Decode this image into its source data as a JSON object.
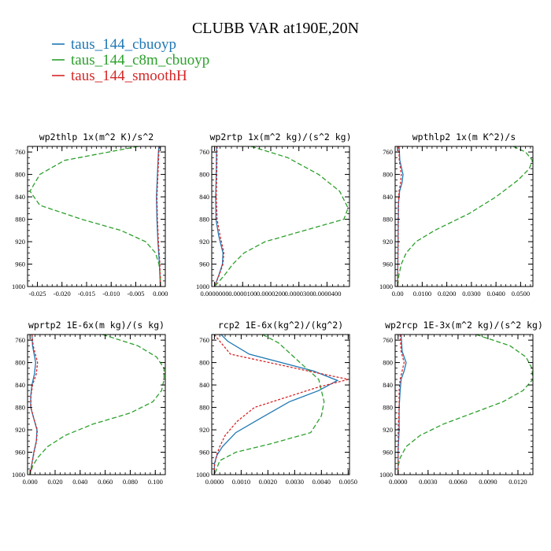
{
  "figure": {
    "title": "CLUBB VAR at190E,20N"
  },
  "legend": [
    {
      "label": "taus_144_cbuoyp",
      "color": "#1f77b4",
      "dash": "solid"
    },
    {
      "label": "taus_144_c8m_cbuoyp",
      "color": "#2ca02c",
      "dash": "dashed"
    },
    {
      "label": "taus_144_smoothH",
      "color": "#d62728",
      "dash": "dotted"
    }
  ],
  "chart_data": [
    {
      "type": "line",
      "title": "wp2thlp  1x(m^2 K)/s^2",
      "xlim": [
        -0.027,
        0.001
      ],
      "ylim": [
        750,
        1000
      ],
      "xticks": [
        -0.025,
        -0.02,
        -0.015,
        -0.01,
        -0.005,
        0.0
      ],
      "xtick_labels": [
        "-0.025",
        "-0.020",
        "-0.015",
        "-0.010",
        "-0.005",
        "0.000"
      ],
      "yticks": [
        760,
        800,
        840,
        880,
        920,
        960,
        1000
      ],
      "ytick_labels": [
        "760",
        "800",
        "840",
        "880",
        "920",
        "960",
        "1000"
      ],
      "series": [
        {
          "y": [
            750,
            760,
            800,
            840,
            880,
            920,
            960,
            1000
          ],
          "x": [
            -0.0003,
            -0.0004,
            -0.0006,
            -0.0008,
            -0.0007,
            -0.0005,
            -0.0002,
            0.0
          ]
        },
        {
          "y": [
            750,
            775,
            800,
            830,
            855,
            880,
            900,
            920,
            940,
            960,
            980,
            1000
          ],
          "x": [
            -0.0045,
            -0.0195,
            -0.0245,
            -0.0265,
            -0.0245,
            -0.016,
            -0.008,
            -0.003,
            -0.001,
            -0.0003,
            0.0,
            0.0
          ]
        },
        {
          "y": [
            750,
            760,
            800,
            840,
            880,
            920,
            960,
            1000
          ],
          "x": [
            -0.0002,
            -0.0003,
            -0.0005,
            -0.0007,
            -0.0006,
            -0.0004,
            -0.0001,
            0.0
          ]
        }
      ]
    },
    {
      "type": "line",
      "title": "wp2rtp  1x(m^2 kg)/(s^2 kg)",
      "xlim": [
        -1e-06,
        4.8e-05
      ],
      "ylim": [
        750,
        1000
      ],
      "xticks": [
        0.0,
        1e-05,
        2e-05,
        3e-05,
        4e-05
      ],
      "xtick_labels": [
        "0.0000000",
        "0.0000100",
        "0.0000200",
        "0.0000300",
        "0.0000400"
      ],
      "yticks": [
        760,
        800,
        840,
        880,
        920,
        960,
        1000
      ],
      "ytick_labels": [
        "760",
        "800",
        "840",
        "880",
        "920",
        "960",
        "1000"
      ],
      "series": [
        {
          "y": [
            750,
            800,
            840,
            880,
            910,
            940,
            960,
            980,
            1000
          ],
          "x": [
            7e-07,
            6e-07,
            4e-07,
            5e-07,
            1.5e-06,
            3e-06,
            2.8e-06,
            1.5e-06,
            0.0
          ]
        },
        {
          "y": [
            750,
            770,
            800,
            830,
            860,
            880,
            900,
            920,
            940,
            960,
            980,
            1000
          ],
          "x": [
            1.3e-05,
            2.6e-05,
            3.7e-05,
            4.45e-05,
            4.75e-05,
            4.6e-05,
            3.2e-05,
            1.8e-05,
            1.05e-05,
            6.5e-06,
            3.5e-06,
            0.0
          ]
        },
        {
          "y": [
            750,
            800,
            840,
            880,
            910,
            940,
            960,
            980,
            1000
          ],
          "x": [
            9e-07,
            8e-07,
            6e-07,
            9e-07,
            2e-06,
            3.3e-06,
            3e-06,
            1.6e-06,
            0.0
          ]
        }
      ]
    },
    {
      "type": "line",
      "title": "wpthlp2  1x(m K^2)/s",
      "xlim": [
        -0.001,
        0.055
      ],
      "ylim": [
        750,
        1000
      ],
      "xticks": [
        0.0,
        0.01,
        0.02,
        0.03,
        0.04,
        0.05
      ],
      "xtick_labels": [
        "0.00",
        "0.0100",
        "0.0200",
        "0.0300",
        "0.0400",
        "0.0500"
      ],
      "yticks": [
        760,
        800,
        840,
        880,
        920,
        960,
        1000
      ],
      "ytick_labels": [
        "760",
        "800",
        "840",
        "880",
        "920",
        "960",
        "1000"
      ],
      "series": [
        {
          "y": [
            750,
            775,
            800,
            815,
            830,
            850,
            880,
            920,
            960,
            1000
          ],
          "x": [
            0.0006,
            0.0009,
            0.0022,
            0.0018,
            0.0008,
            0.0004,
            0.0003,
            0.0002,
            0.0001,
            0.0
          ]
        },
        {
          "y": [
            750,
            760,
            775,
            790,
            810,
            840,
            870,
            900,
            920,
            940,
            960,
            980,
            1000
          ],
          "x": [
            0.047,
            0.052,
            0.0548,
            0.0535,
            0.049,
            0.04,
            0.029,
            0.015,
            0.0075,
            0.0035,
            0.0015,
            0.0005,
            0.0
          ]
        },
        {
          "y": [
            750,
            775,
            800,
            815,
            830,
            850,
            880,
            920,
            960,
            1000
          ],
          "x": [
            0.0005,
            0.0007,
            0.0015,
            0.0012,
            0.0006,
            0.0003,
            0.0002,
            0.0002,
            0.0001,
            0.0
          ]
        }
      ]
    },
    {
      "type": "line",
      "title": "wprtp2  1E-6x(m kg)/(s kg)",
      "xlim": [
        -0.002,
        0.108
      ],
      "ylim": [
        750,
        1000
      ],
      "xticks": [
        0.0,
        0.02,
        0.04,
        0.06,
        0.08,
        0.1
      ],
      "xtick_labels": [
        "0.000",
        "0.020",
        "0.040",
        "0.060",
        "0.080",
        "0.100"
      ],
      "yticks": [
        760,
        800,
        840,
        880,
        920,
        960,
        1000
      ],
      "ytick_labels": [
        "760",
        "800",
        "840",
        "880",
        "920",
        "960",
        "1000"
      ],
      "series": [
        {
          "y": [
            750,
            770,
            800,
            820,
            840,
            860,
            880,
            900,
            920,
            940,
            960,
            980,
            1000
          ],
          "x": [
            0.0015,
            0.002,
            0.0045,
            0.0035,
            0.0015,
            0.0005,
            0.0005,
            0.003,
            0.0055,
            0.005,
            0.003,
            0.0015,
            0.0
          ]
        },
        {
          "y": [
            750,
            770,
            790,
            810,
            830,
            850,
            870,
            890,
            910,
            930,
            950,
            970,
            985,
            1000
          ],
          "x": [
            0.058,
            0.086,
            0.101,
            0.107,
            0.107,
            0.105,
            0.098,
            0.08,
            0.05,
            0.028,
            0.014,
            0.006,
            0.002,
            0.0
          ]
        },
        {
          "y": [
            750,
            770,
            800,
            820,
            840,
            860,
            880,
            900,
            920,
            940,
            960,
            980,
            1000
          ],
          "x": [
            0.0015,
            0.0025,
            0.006,
            0.005,
            0.002,
            0.0007,
            0.0007,
            0.003,
            0.0058,
            0.0052,
            0.0032,
            0.0016,
            0.0
          ]
        }
      ]
    },
    {
      "type": "line",
      "title": "rcp2  1E-6x(kg^2)/(kg^2)",
      "xlim": [
        -0.0001,
        0.00505
      ],
      "ylim": [
        750,
        1000
      ],
      "xticks": [
        0.0,
        0.001,
        0.002,
        0.003,
        0.004,
        0.005
      ],
      "xtick_labels": [
        "0.0000",
        "0.0010",
        "0.0020",
        "0.0030",
        "0.0040",
        "0.0050"
      ],
      "yticks": [
        760,
        800,
        840,
        880,
        920,
        960,
        1000
      ],
      "ytick_labels": [
        "760",
        "800",
        "840",
        "880",
        "920",
        "960",
        "1000"
      ],
      "series": [
        {
          "y": [
            750,
            762,
            785,
            815,
            832,
            850,
            870,
            900,
            925,
            950,
            965,
            980,
            1000
          ],
          "x": [
            0.00025,
            0.0005,
            0.0013,
            0.0037,
            0.0046,
            0.0039,
            0.0028,
            0.0017,
            0.0008,
            0.0003,
            0.0001,
            0.0,
            0.0
          ]
        },
        {
          "y": [
            750,
            765,
            800,
            830,
            870,
            895,
            925,
            945,
            960,
            975,
            1000
          ],
          "x": [
            0.0018,
            0.0024,
            0.0032,
            0.0039,
            0.0041,
            0.004,
            0.0036,
            0.0021,
            0.0008,
            0.0002,
            0.0
          ]
        },
        {
          "y": [
            750,
            762,
            785,
            815,
            830,
            845,
            880,
            905,
            930,
            950,
            965,
            985,
            1000
          ],
          "x": [
            0.0,
            0.0002,
            0.0006,
            0.0035,
            0.005,
            0.0038,
            0.0015,
            0.00085,
            0.0004,
            0.0002,
            8e-05,
            0.0,
            0.0
          ]
        }
      ]
    },
    {
      "type": "line",
      "title": "wp2rcp  1E-3x(m^2 kg)/(s^2 kg)",
      "xlim": [
        -0.0003,
        0.0135
      ],
      "ylim": [
        750,
        1000
      ],
      "xticks": [
        0.0,
        0.003,
        0.006,
        0.009,
        0.012
      ],
      "xtick_labels": [
        "0.0000",
        "0.0030",
        "0.0060",
        "0.0090",
        "0.0120"
      ],
      "yticks": [
        760,
        800,
        840,
        880,
        920,
        960,
        1000
      ],
      "ytick_labels": [
        "760",
        "800",
        "840",
        "880",
        "920",
        "960",
        "1000"
      ],
      "series": [
        {
          "y": [
            750,
            780,
            800,
            815,
            830,
            850,
            880,
            920,
            960,
            1000
          ],
          "x": [
            0.0003,
            0.0004,
            0.0008,
            0.0006,
            0.0003,
            0.0002,
            0.0001,
            0.0001,
            0.0,
            0.0
          ]
        },
        {
          "y": [
            750,
            770,
            790,
            810,
            830,
            850,
            870,
            890,
            910,
            930,
            950,
            970,
            985,
            1000
          ],
          "x": [
            0.0078,
            0.0112,
            0.0128,
            0.0134,
            0.0135,
            0.0125,
            0.0105,
            0.0075,
            0.0045,
            0.0022,
            0.0008,
            0.0002,
            0.0,
            0.0
          ]
        },
        {
          "y": [
            750,
            780,
            800,
            815,
            830,
            850,
            880,
            920,
            960,
            1000
          ],
          "x": [
            0.0002,
            0.0003,
            0.0006,
            0.0004,
            0.0002,
            0.0001,
            0.0001,
            0.0,
            0.0,
            0.0
          ]
        }
      ]
    }
  ]
}
